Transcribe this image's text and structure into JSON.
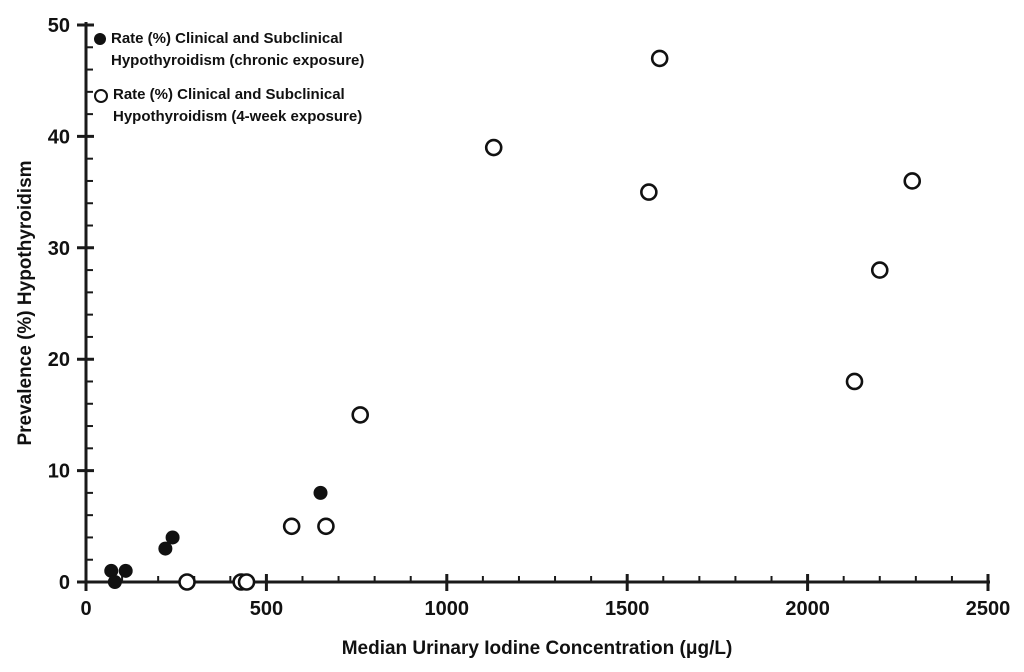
{
  "chart_data": {
    "type": "scatter",
    "title": "",
    "xlabel": "Median Urinary Iodine Concentration (μg/L)",
    "ylabel": "Prevalence (%) Hypothyroidism",
    "xlim": [
      0,
      2500
    ],
    "ylim": [
      0,
      50
    ],
    "x_major_ticks": [
      0,
      500,
      1000,
      1500,
      2000,
      2500
    ],
    "x_minor_step": 100,
    "y_major_ticks": [
      0,
      10,
      20,
      30,
      40,
      50
    ],
    "y_minor_step": 2,
    "grid": false,
    "legend_position": "top-left",
    "series": [
      {
        "name": "Rate (%) Clinical and Subclinical Hypothyroidism (chronic exposure)",
        "legend_lines": [
          "Rate (%) Clinical and Subclinical",
          "Hypothyroidism (chronic exposure)"
        ],
        "marker": "filled-circle",
        "color": "#111111",
        "points": [
          [
            70,
            1
          ],
          [
            80,
            0
          ],
          [
            110,
            1
          ],
          [
            220,
            3
          ],
          [
            240,
            4
          ],
          [
            650,
            8
          ]
        ]
      },
      {
        "name": "Rate (%) Clinical and Subclinical Hypothyroidism (4-week exposure)",
        "legend_lines": [
          "Rate (%) Clinical and Subclinical",
          "Hypothyroidism (4-week exposure)"
        ],
        "marker": "open-circle",
        "color": "#111111",
        "points": [
          [
            280,
            0
          ],
          [
            430,
            0
          ],
          [
            445,
            0
          ],
          [
            570,
            5
          ],
          [
            665,
            5
          ],
          [
            760,
            15
          ],
          [
            1130,
            39
          ],
          [
            1560,
            35
          ],
          [
            1590,
            47
          ],
          [
            2130,
            18
          ],
          [
            2200,
            28
          ],
          [
            2290,
            36
          ]
        ]
      }
    ]
  },
  "colors": {
    "background": "#ffffff",
    "axis": "#1a1a1a",
    "text": "#111111",
    "marker_fill": "#111111",
    "open_marker_fill": "#ffffff"
  }
}
